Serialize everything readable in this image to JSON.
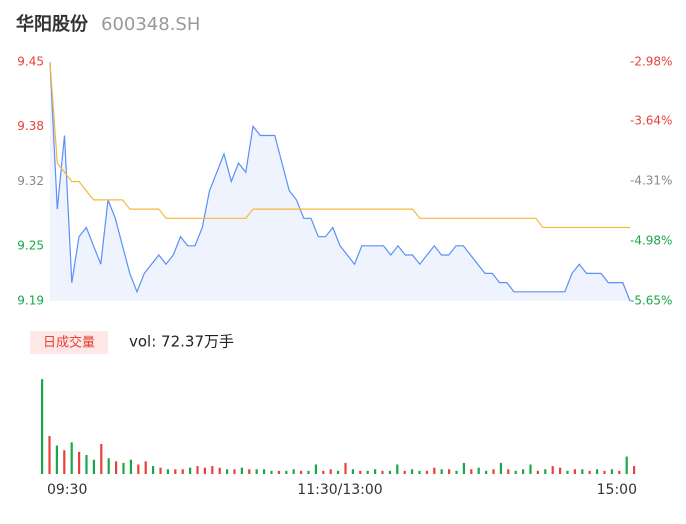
{
  "chart_data": [
    {
      "type": "line",
      "title": "华阳股份",
      "subtitle": "600348.SH",
      "ylim": [
        9.19,
        9.45
      ],
      "yticks": [
        9.45,
        9.38,
        9.32,
        9.25,
        9.19
      ],
      "y2lim": [
        -5.65,
        -2.98
      ],
      "y2ticks": [
        {
          "value": -2.98,
          "label": "-2.98%"
        },
        {
          "value": -3.64,
          "label": "-3.64%"
        },
        {
          "value": -4.31,
          "label": "-4.31%"
        },
        {
          "value": -4.98,
          "label": "-4.98%"
        },
        {
          "value": -5.65,
          "label": "-5.65%"
        }
      ],
      "tick_colors": [
        "#e8413a",
        "#e8413a",
        "#888888",
        "#1aa64a",
        "#1aa64a"
      ],
      "area_color": "#eef3fd",
      "series": [
        {
          "color": "#5b8ff9",
          "values": [
            9.45,
            9.29,
            9.37,
            9.21,
            9.26,
            9.27,
            9.25,
            9.23,
            9.3,
            9.28,
            9.25,
            9.22,
            9.2,
            9.22,
            9.23,
            9.24,
            9.23,
            9.24,
            9.26,
            9.25,
            9.25,
            9.27,
            9.31,
            9.33,
            9.35,
            9.32,
            9.34,
            9.33,
            9.38,
            9.37,
            9.37,
            9.37,
            9.34,
            9.31,
            9.3,
            9.28,
            9.28,
            9.26,
            9.26,
            9.27,
            9.25,
            9.24,
            9.23,
            9.25,
            9.25,
            9.25,
            9.25,
            9.24,
            9.25,
            9.24,
            9.24,
            9.23,
            9.24,
            9.25,
            9.24,
            9.24,
            9.25,
            9.25,
            9.24,
            9.23,
            9.22,
            9.22,
            9.21,
            9.21,
            9.2,
            9.2,
            9.2,
            9.2,
            9.2,
            9.2,
            9.2,
            9.2,
            9.22,
            9.23,
            9.22,
            9.22,
            9.22,
            9.21,
            9.21,
            9.21,
            9.19
          ]
        },
        {
          "color": "#f5b83d",
          "values": [
            9.45,
            9.34,
            9.33,
            9.32,
            9.32,
            9.31,
            9.3,
            9.3,
            9.3,
            9.3,
            9.3,
            9.29,
            9.29,
            9.29,
            9.29,
            9.29,
            9.28,
            9.28,
            9.28,
            9.28,
            9.28,
            9.28,
            9.28,
            9.28,
            9.28,
            9.28,
            9.28,
            9.28,
            9.29,
            9.29,
            9.29,
            9.29,
            9.29,
            9.29,
            9.29,
            9.29,
            9.29,
            9.29,
            9.29,
            9.29,
            9.29,
            9.29,
            9.29,
            9.29,
            9.29,
            9.29,
            9.29,
            9.29,
            9.29,
            9.29,
            9.29,
            9.28,
            9.28,
            9.28,
            9.28,
            9.28,
            9.28,
            9.28,
            9.28,
            9.28,
            9.28,
            9.28,
            9.28,
            9.28,
            9.28,
            9.28,
            9.28,
            9.28,
            9.27,
            9.27,
            9.27,
            9.27,
            9.27,
            9.27,
            9.27,
            9.27,
            9.27,
            9.27,
            9.27,
            9.27,
            9.27
          ]
        }
      ]
    },
    {
      "type": "bar",
      "label": "日成交量",
      "total_label": "vol: 72.37万手",
      "ylim": [
        0,
        6.2
      ],
      "categories": [
        "09:30",
        null,
        null,
        null,
        null,
        null,
        null,
        null,
        null,
        null,
        null,
        null,
        null,
        null,
        null,
        null,
        null,
        null,
        null,
        null,
        null,
        null,
        null,
        null,
        null,
        null,
        null,
        null,
        null,
        null,
        null,
        null,
        null,
        null,
        null,
        null,
        null,
        null,
        null,
        null,
        "11:30/13:00",
        null,
        null,
        null,
        null,
        null,
        null,
        null,
        null,
        null,
        null,
        null,
        null,
        null,
        null,
        null,
        null,
        null,
        null,
        null,
        null,
        null,
        null,
        null,
        null,
        null,
        null,
        null,
        null,
        null,
        null,
        null,
        null,
        null,
        null,
        null,
        null,
        null,
        null,
        null,
        "15:00"
      ],
      "values": [
        6.0,
        2.4,
        1.8,
        1.5,
        2.0,
        1.4,
        1.2,
        0.9,
        1.9,
        1.0,
        0.8,
        0.7,
        0.9,
        0.6,
        0.8,
        0.5,
        0.4,
        0.3,
        0.3,
        0.3,
        0.4,
        0.5,
        0.4,
        0.5,
        0.4,
        0.3,
        0.3,
        0.4,
        0.3,
        0.3,
        0.3,
        0.2,
        0.2,
        0.2,
        0.3,
        0.2,
        0.2,
        0.6,
        0.2,
        0.3,
        0.2,
        0.7,
        0.3,
        0.2,
        0.2,
        0.3,
        0.2,
        0.2,
        0.6,
        0.2,
        0.3,
        0.2,
        0.2,
        0.4,
        0.3,
        0.3,
        0.2,
        0.7,
        0.3,
        0.4,
        0.2,
        0.3,
        0.7,
        0.3,
        0.2,
        0.3,
        0.6,
        0.2,
        0.3,
        0.5,
        0.4,
        0.2,
        0.3,
        0.3,
        0.2,
        0.3,
        0.2,
        0.3,
        0.2,
        1.1,
        0.5
      ],
      "colors": [
        "#1aa64a",
        "#e8413a",
        "#1aa64a",
        "#e8413a",
        "#1aa64a",
        "#e8413a",
        "#1aa64a",
        "#1aa64a",
        "#e8413a",
        "#1aa64a",
        "#e8413a",
        "#1aa64a",
        "#1aa64a",
        "#e8413a",
        "#e8413a",
        "#1aa64a",
        "#e8413a",
        "#1aa64a",
        "#e8413a",
        "#e8413a",
        "#1aa64a",
        "#e8413a",
        "#e8413a",
        "#e8413a",
        "#e8413a",
        "#1aa64a",
        "#e8413a",
        "#1aa64a",
        "#e8413a",
        "#1aa64a",
        "#1aa64a",
        "#1aa64a",
        "#e8413a",
        "#1aa64a",
        "#1aa64a",
        "#e8413a",
        "#1aa64a",
        "#1aa64a",
        "#e8413a",
        "#e8413a",
        "#1aa64a",
        "#e8413a",
        "#1aa64a",
        "#e8413a",
        "#1aa64a",
        "#1aa64a",
        "#e8413a",
        "#1aa64a",
        "#1aa64a",
        "#e8413a",
        "#1aa64a",
        "#1aa64a",
        "#e8413a",
        "#e8413a",
        "#1aa64a",
        "#e8413a",
        "#1aa64a",
        "#1aa64a",
        "#e8413a",
        "#1aa64a",
        "#1aa64a",
        "#e8413a",
        "#1aa64a",
        "#e8413a",
        "#1aa64a",
        "#1aa64a",
        "#1aa64a",
        "#e8413a",
        "#1aa64a",
        "#e8413a",
        "#e8413a",
        "#1aa64a",
        "#e8413a",
        "#1aa64a",
        "#e8413a",
        "#1aa64a",
        "#e8413a",
        "#1aa64a",
        "#e8413a",
        "#1aa64a",
        "#e8413a"
      ]
    }
  ]
}
